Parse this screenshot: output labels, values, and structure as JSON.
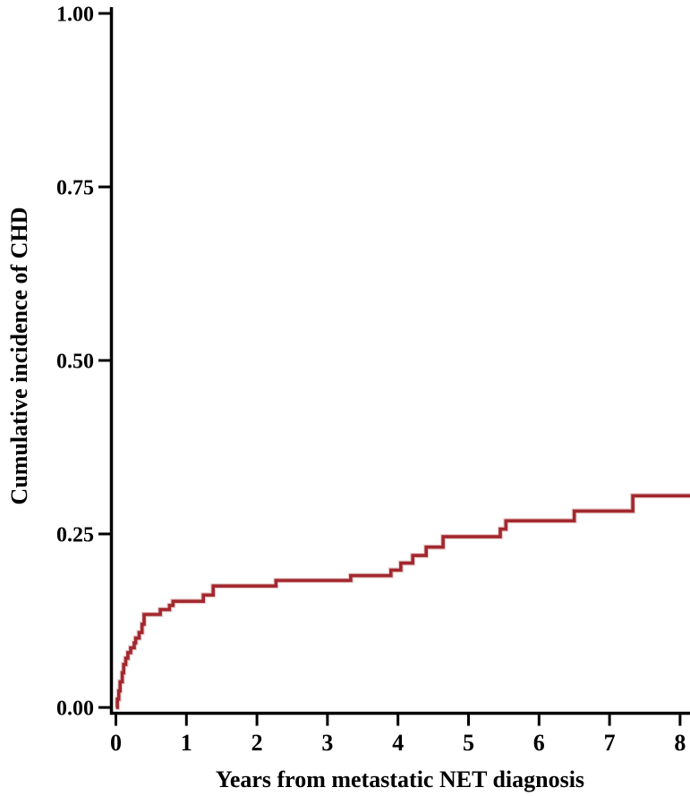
{
  "chart_data": {
    "type": "line",
    "style": "step",
    "title": "",
    "xlabel": "Years from metastatic NET diagnosis",
    "ylabel": "Cumulative incidence of CHD",
    "x_tick_labels": [
      "0",
      "1",
      "2",
      "3",
      "4",
      "5",
      "6",
      "7",
      "8"
    ],
    "x_tick_values": [
      0,
      1,
      2,
      3,
      4,
      5,
      6,
      7,
      8
    ],
    "y_tick_labels": [
      "0.00",
      "0.25",
      "0.50",
      "0.75",
      "1.00"
    ],
    "y_tick_values": [
      0,
      0.25,
      0.5,
      0.75,
      1.0
    ],
    "xlim": [
      0,
      8.15
    ],
    "ylim": [
      0,
      1.0
    ],
    "grid": false,
    "legend": null,
    "line_color": "#A2282E",
    "line_halo_color": "#E9CDCD",
    "axis_color": "#000000",
    "series": [
      {
        "name": "Cumulative incidence of CHD",
        "steps": [
          [
            0.0,
            0.0
          ],
          [
            0.02,
            0.012
          ],
          [
            0.04,
            0.024
          ],
          [
            0.06,
            0.037
          ],
          [
            0.09,
            0.05
          ],
          [
            0.11,
            0.062
          ],
          [
            0.14,
            0.071
          ],
          [
            0.17,
            0.079
          ],
          [
            0.21,
            0.086
          ],
          [
            0.26,
            0.093
          ],
          [
            0.28,
            0.1
          ],
          [
            0.33,
            0.108
          ],
          [
            0.37,
            0.12
          ],
          [
            0.4,
            0.134
          ],
          [
            0.63,
            0.141
          ],
          [
            0.76,
            0.147
          ],
          [
            0.81,
            0.153
          ],
          [
            1.24,
            0.162
          ],
          [
            1.38,
            0.175
          ],
          [
            2.27,
            0.183
          ],
          [
            3.33,
            0.19
          ],
          [
            3.9,
            0.198
          ],
          [
            4.04,
            0.208
          ],
          [
            4.21,
            0.219
          ],
          [
            4.4,
            0.231
          ],
          [
            4.64,
            0.246
          ],
          [
            5.45,
            0.257
          ],
          [
            5.53,
            0.269
          ],
          [
            6.5,
            0.283
          ],
          [
            7.33,
            0.305
          ]
        ],
        "end_x": 8.15
      }
    ]
  }
}
